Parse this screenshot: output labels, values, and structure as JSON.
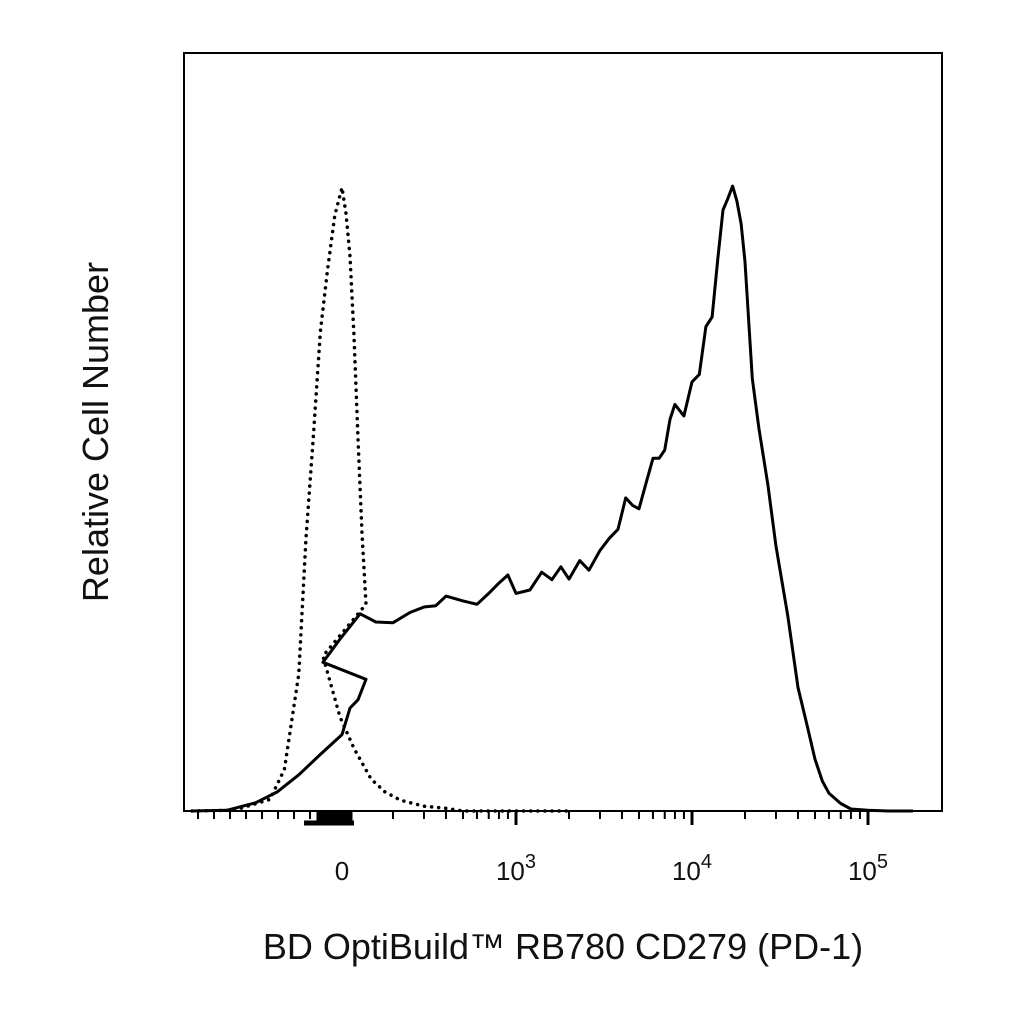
{
  "chart_data": {
    "type": "line",
    "xscale": "biexponential",
    "xlabel": "BD OptiBuild™ RB780 CD279 (PD-1)",
    "ylabel": "Relative Cell Number",
    "xlim": [
      -300,
      180000
    ],
    "ylim": [
      0,
      100
    ],
    "x_tick_labels": [
      {
        "base": "0",
        "exp": "",
        "value": 0
      },
      {
        "base": "10",
        "exp": "3",
        "value": 1000
      },
      {
        "base": "10",
        "exp": "4",
        "value": 10000
      },
      {
        "base": "10",
        "exp": "5",
        "value": 100000
      }
    ],
    "grid": false,
    "legend": "none",
    "series": [
      {
        "style": "dotted",
        "x": [
          -300,
          -150,
          -100,
          -80,
          -60,
          -50,
          -40,
          -30,
          -20,
          -10,
          0,
          10,
          20,
          30,
          40,
          50,
          60,
          80,
          100,
          120,
          150,
          180,
          220,
          300,
          400,
          500,
          700,
          1000,
          2000
        ],
        "y": [
          0.0,
          0.1,
          1.7,
          6.1,
          20.1,
          40.0,
          54.6,
          70.3,
          79.4,
          87.3,
          91.4,
          87.6,
          81.3,
          69.6,
          54.6,
          40.7,
          30.3,
          22.7,
          13.8,
          9.2,
          4.7,
          2.8,
          1.6,
          0.7,
          0.4,
          0.0,
          0.0,
          0.0,
          0.0
        ]
      },
      {
        "style": "solid",
        "x": [
          -300,
          -160,
          -120,
          -90,
          -60,
          -30,
          0,
          20,
          40,
          60,
          80,
          100,
          130,
          160,
          200,
          250,
          300,
          350,
          400,
          500,
          600,
          700,
          800,
          900,
          1000,
          1200,
          1400,
          1600,
          1800,
          2000,
          2300,
          2600,
          3000,
          3400,
          3800,
          4200,
          4600,
          5000,
          5500,
          6000,
          6500,
          7000,
          7500,
          8000,
          9000,
          10000,
          11000,
          12000,
          13000,
          14000,
          15000,
          16000,
          17000,
          18000,
          19000,
          20000,
          22000,
          24000,
          27000,
          30000,
          35000,
          40000,
          45000,
          50000,
          55000,
          60000,
          70000,
          80000,
          100000,
          130000,
          180000
        ],
        "y": [
          0.0,
          0.1,
          1.2,
          2.8,
          5.3,
          8.3,
          11.2,
          15.1,
          16.3,
          19.3,
          21.8,
          25.2,
          28.9,
          27.7,
          27.6,
          29.1,
          29.9,
          30.1,
          31.5,
          30.8,
          30.3,
          31.9,
          33.4,
          34.6,
          31.9,
          32.4,
          35.0,
          33.9,
          35.8,
          34.0,
          36.7,
          35.3,
          38.2,
          40.0,
          41.3,
          45.9,
          44.8,
          44.3,
          48.2,
          51.7,
          51.7,
          52.9,
          57.4,
          59.6,
          57.9,
          62.9,
          64.0,
          71.0,
          72.4,
          80.8,
          88.1,
          89.8,
          91.6,
          89.4,
          86.1,
          80.5,
          63.4,
          56.1,
          47.8,
          38.8,
          28.6,
          18.1,
          12.6,
          7.6,
          4.4,
          2.6,
          1.1,
          0.3,
          0.1,
          0.0,
          0.0
        ]
      }
    ]
  }
}
